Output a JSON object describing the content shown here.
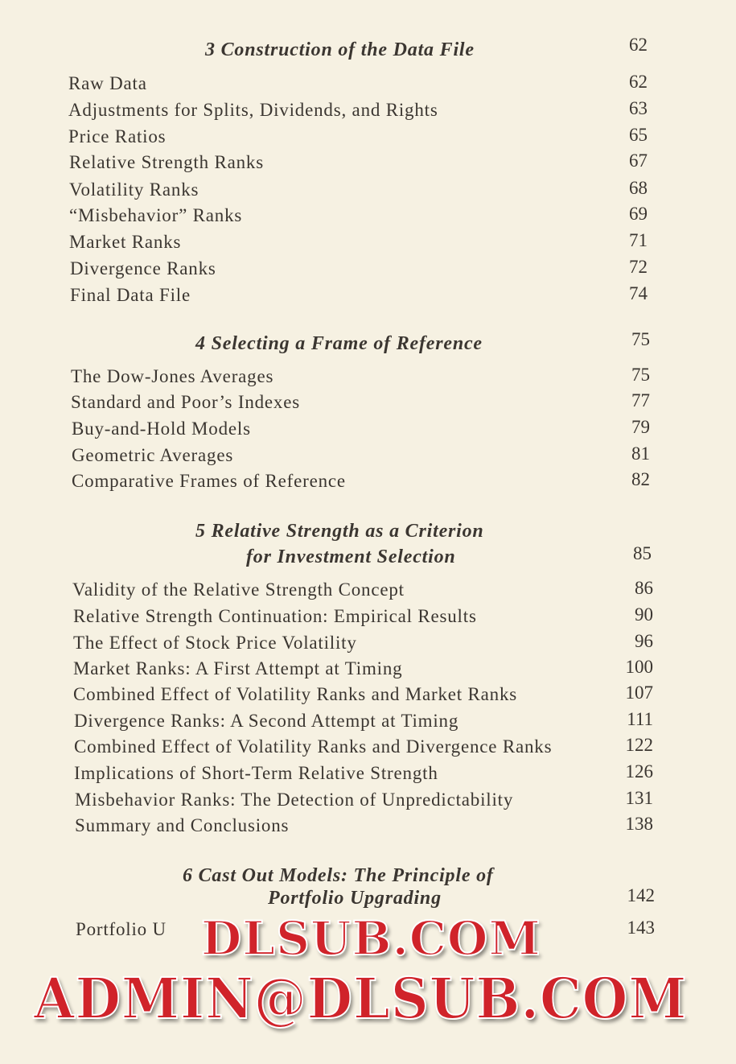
{
  "chapters": [
    {
      "title_lines": [
        "3  Construction of the Data File"
      ],
      "page": "62",
      "entries": [
        [
          "Raw Data",
          "62"
        ],
        [
          "Adjustments for Splits, Dividends, and Rights",
          "63"
        ],
        [
          "Price Ratios",
          "65"
        ],
        [
          "Relative Strength Ranks",
          "67"
        ],
        [
          "Volatility Ranks",
          "68"
        ],
        [
          "“Misbehavior” Ranks",
          "69"
        ],
        [
          "Market Ranks",
          "71"
        ],
        [
          "Divergence Ranks",
          "72"
        ],
        [
          "Final Data File",
          "74"
        ]
      ]
    },
    {
      "title_lines": [
        "4  Selecting a Frame of Reference"
      ],
      "page": "75",
      "entries": [
        [
          "The Dow-Jones Averages",
          "75"
        ],
        [
          "Standard and Poor’s Indexes",
          "77"
        ],
        [
          "Buy-and-Hold Models",
          "79"
        ],
        [
          "Geometric Averages",
          "81"
        ],
        [
          "Comparative Frames of Reference",
          "82"
        ]
      ]
    },
    {
      "title_lines": [
        "5  Relative Strength as a Criterion",
        "for Investment Selection"
      ],
      "page": "85",
      "entries": [
        [
          "Validity of the Relative Strength Concept",
          "86"
        ],
        [
          "Relative Strength Continuation: Empirical Results",
          "90"
        ],
        [
          "The Effect of Stock Price Volatility",
          "96"
        ],
        [
          "Market Ranks: A First Attempt at Timing",
          "100"
        ],
        [
          "Combined Effect of Volatility Ranks and Market Ranks",
          "107"
        ],
        [
          "Divergence Ranks: A Second Attempt at Timing",
          "111"
        ],
        [
          "Combined Effect of Volatility Ranks and Divergence Ranks",
          "122"
        ],
        [
          "Implications of Short-Term Relative Strength",
          "126"
        ],
        [
          "Misbehavior Ranks: The Detection of Unpredictability",
          "131"
        ],
        [
          "Summary and Conclusions",
          "138"
        ]
      ]
    },
    {
      "title_lines": [
        "6  Cast Out Models: The Principle of",
        "Portfolio Upgrading"
      ],
      "page": "142",
      "entries": [
        [
          "Portfolio U",
          "143"
        ]
      ]
    }
  ],
  "watermark": {
    "line1": "DLSUB.COM",
    "line2": "ADMIN@DLSUB.COM",
    "color": "#d0232a"
  }
}
